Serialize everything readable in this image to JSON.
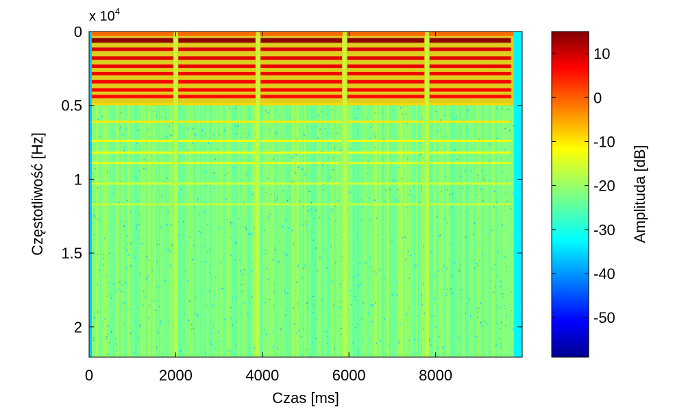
{
  "chart_data": {
    "type": "heatmap",
    "title": "",
    "xlabel": "Czas [ms]",
    "ylabel": "Częstotliwość [Hz]",
    "xlim": [
      0,
      10000
    ],
    "ylim": [
      0,
      22050
    ],
    "y_reversed": true,
    "x_ticks": [
      0,
      2000,
      4000,
      6000,
      8000
    ],
    "x_tick_labels": [
      "0",
      "2000",
      "4000",
      "6000",
      "8000"
    ],
    "y_ticks": [
      0,
      5000,
      10000,
      15000,
      20000
    ],
    "y_tick_labels": [
      "0",
      "0.5",
      "1",
      "1.5",
      "2"
    ],
    "y_exponent_base": "x 10",
    "y_exponent_power": "4",
    "colorbar": {
      "label": "Amplituda [dB]",
      "colormap": "jet",
      "range": [
        -59,
        15
      ],
      "ticks": [
        10,
        0,
        -10,
        -20,
        -30,
        -40,
        -50
      ],
      "tick_labels": [
        "10",
        "0",
        "-10",
        "-20",
        "-30",
        "-40",
        "-50"
      ]
    },
    "description_of_values": {
      "strong_harmonic_bands_hz": [
        600,
        1200,
        1800,
        2350,
        2850,
        3400,
        3950,
        4400
      ],
      "weak_harmonic_bands_hz": [
        4900,
        6100,
        7400,
        8200,
        8900,
        10300,
        11700
      ],
      "segment_boundaries_ms": [
        2000,
        3900,
        5900,
        7800
      ],
      "signal_end_ms": 9800,
      "background_level_db": -22
    }
  }
}
